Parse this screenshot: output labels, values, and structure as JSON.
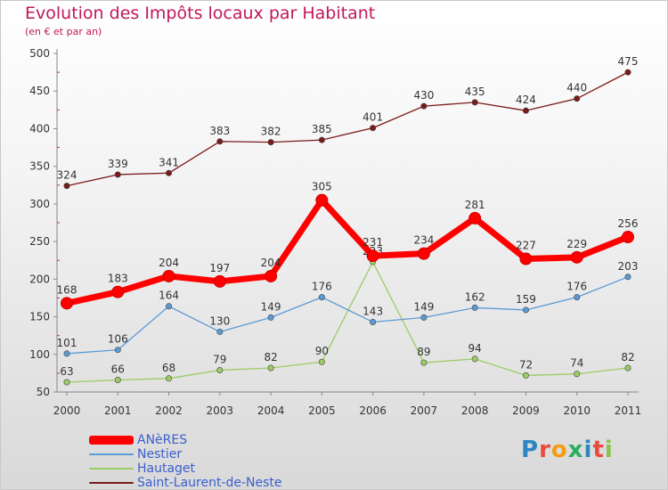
{
  "header": {
    "title": "Evolution des Impôts locaux par Habitant",
    "subtitle": "(en € et par an)"
  },
  "logo": {
    "letters": [
      "P",
      "r",
      "o",
      "x",
      "i",
      "t",
      "i"
    ],
    "colors": [
      "#2e86c1",
      "#e74c3c",
      "#f39c12",
      "#27ae60",
      "#2e86c1",
      "#e74c3c",
      "#8bc34a"
    ]
  },
  "chart_data": {
    "type": "line",
    "title": "Evolution des Impôts locaux par Habitant",
    "subtitle": "(en € et par an)",
    "xlabel": "",
    "ylabel": "",
    "x": [
      "2000",
      "2001",
      "2002",
      "2003",
      "2004",
      "2005",
      "2006",
      "2007",
      "2008",
      "2009",
      "2010",
      "2011"
    ],
    "ylim": [
      50,
      500
    ],
    "yticks": [
      50,
      100,
      150,
      200,
      250,
      300,
      350,
      400,
      450,
      500
    ],
    "grid": false,
    "legend_position": "bottom-left",
    "series": [
      {
        "name": "Saint-Laurent-de-Neste",
        "color": "#7b1a1a",
        "values": [
          324,
          339,
          341,
          383,
          382,
          385,
          401,
          430,
          435,
          424,
          440,
          475
        ]
      },
      {
        "name": "Hautaget",
        "color": "#9ccc65",
        "values": [
          63,
          66,
          68,
          79,
          82,
          90,
          223,
          89,
          94,
          72,
          74,
          82
        ]
      },
      {
        "name": "Nestier",
        "color": "#5b9bd5",
        "values": [
          101,
          106,
          164,
          130,
          149,
          176,
          143,
          149,
          162,
          159,
          176,
          203
        ]
      },
      {
        "name": "ANèRES",
        "color": "#ff0000",
        "values": [
          168,
          183,
          204,
          197,
          204,
          305,
          231,
          234,
          281,
          227,
          229,
          256
        ]
      }
    ],
    "legend_order": [
      "ANèRES",
      "Nestier",
      "Hautaget",
      "Saint-Laurent-de-Neste"
    ]
  }
}
